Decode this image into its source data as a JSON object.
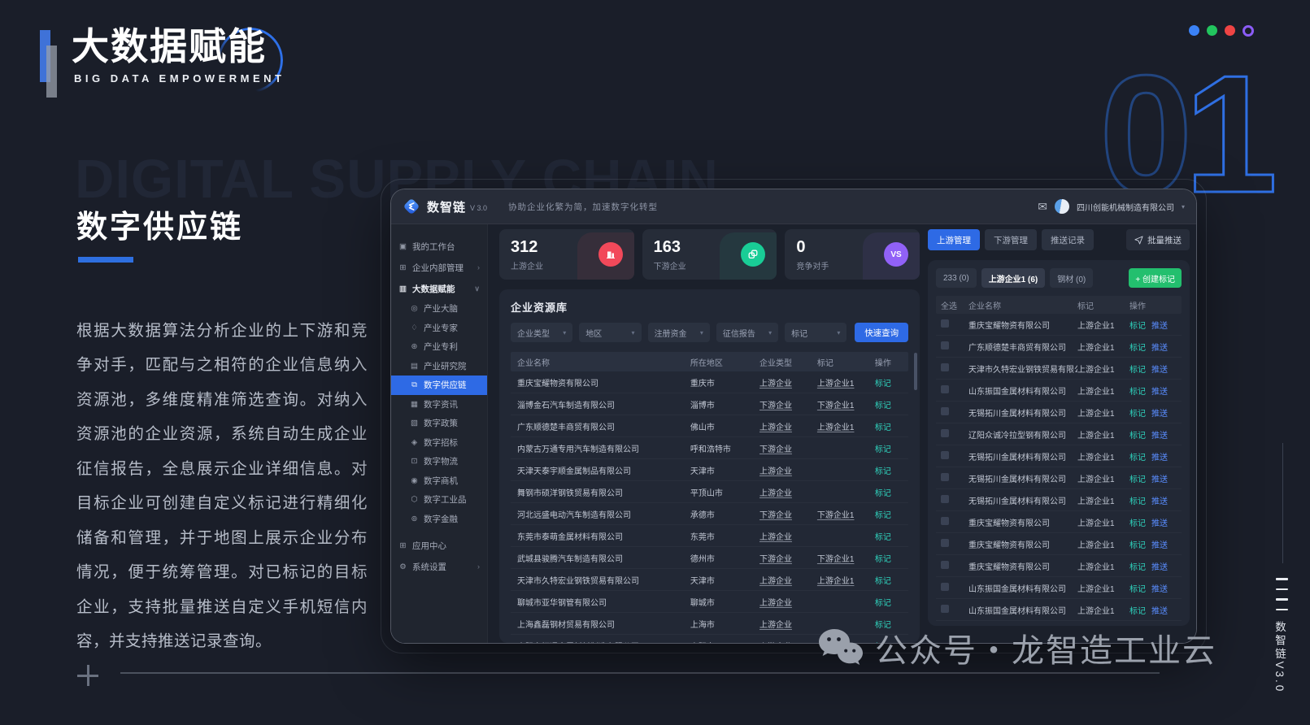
{
  "slide": {
    "title": "大数据赋能",
    "subtitle": "BIG DATA EMPOWERMENT",
    "watermark": "DIGITAL SUPPLY CHAIN",
    "section_title": "数字供应链",
    "paragraph": "根据大数据算法分析企业的上下游和竞争对手，匹配与之相符的企业信息纳入资源池，多维度精准筛选查询。对纳入资源池的企业资源，系统自动生成企业征信报告，全息展示企业详细信息。对目标企业可创建自定义标记进行精细化储备和管理，并于地图上展示企业分布情况，便于统筹管理。对已标记的目标企业，支持批量推送自定义手机短信内容，并支持推送记录查询。",
    "page_number": "01",
    "footer_brand": "公众号・龙智造工业云",
    "side_caption": "数智链V3.0"
  },
  "decor": {
    "window_dots": [
      "#3b82f6",
      "#22c55e",
      "#ef4444",
      "#8b5cf6"
    ],
    "accent_blue": "#2e6ae5",
    "teal_link": "#2fd3bd",
    "push_link": "#5a8dff",
    "create_green": "#23bf6e",
    "page_number_strokes": [
      "#22457f",
      "#2f6fe2"
    ]
  },
  "app": {
    "brand": "数智链",
    "version": "V 3.0",
    "tagline": "协助企业化繁为简，加速数字化转型",
    "account": "四川创能机械制造有限公司",
    "stats": [
      {
        "value": "312",
        "label": "上游企业",
        "icon": "building-icon",
        "color": "#f2495a"
      },
      {
        "value": "163",
        "label": "下游企业",
        "icon": "link-icon",
        "color": "#19cd96"
      },
      {
        "value": "0",
        "label": "竞争对手",
        "icon": "vs-icon",
        "icon_text": "VS",
        "color": "#9161f7"
      }
    ],
    "sidebar": {
      "items": [
        {
          "label": "我的工作台",
          "icon": "workbench-icon",
          "level": "top"
        },
        {
          "label": "企业内部管理",
          "icon": "org-icon",
          "level": "top",
          "chevron": "right"
        },
        {
          "label": "大数据赋能",
          "icon": "bigdata-icon",
          "level": "top",
          "chevron": "down",
          "emph": true
        },
        {
          "label": "产业大脑",
          "icon": "brain-icon",
          "level": "sub"
        },
        {
          "label": "产业专家",
          "icon": "expert-icon",
          "level": "sub"
        },
        {
          "label": "产业专利",
          "icon": "patent-icon",
          "level": "sub"
        },
        {
          "label": "产业研究院",
          "icon": "institute-icon",
          "level": "sub"
        },
        {
          "label": "数字供应链",
          "icon": "supply-chain-icon",
          "level": "sub",
          "active": true
        },
        {
          "label": "数字资讯",
          "icon": "news-icon",
          "level": "sub"
        },
        {
          "label": "数字政策",
          "icon": "policy-icon",
          "level": "sub"
        },
        {
          "label": "数字招标",
          "icon": "bidding-icon",
          "level": "sub"
        },
        {
          "label": "数字物流",
          "icon": "logistics-icon",
          "level": "sub"
        },
        {
          "label": "数字商机",
          "icon": "business-icon",
          "level": "sub"
        },
        {
          "label": "数字工业品",
          "icon": "industrial-icon",
          "level": "sub"
        },
        {
          "label": "数字金融",
          "icon": "finance-icon",
          "level": "sub"
        },
        {
          "label": "应用中心",
          "icon": "apps-icon",
          "level": "top",
          "gap": true
        },
        {
          "label": "系统设置",
          "icon": "settings-icon",
          "level": "top",
          "chevron": "right"
        }
      ]
    },
    "resource": {
      "title": "企业资源库",
      "filters": [
        "企业类型",
        "地区",
        "注册资金",
        "征信报告",
        "标记"
      ],
      "search_button": "快速查询",
      "columns": [
        "企业名称",
        "所在地区",
        "企业类型",
        "标记",
        "操作"
      ],
      "action_label": "标记",
      "rows": [
        {
          "name": "重庆宝耀物资有限公司",
          "region": "重庆市",
          "type": "上游企业",
          "tag": "上游企业1"
        },
        {
          "name": "淄博金石汽车制造有限公司",
          "region": "淄博市",
          "type": "下游企业",
          "tag": "下游企业1"
        },
        {
          "name": "广东顺德楚丰商贸有限公司",
          "region": "佛山市",
          "type": "上游企业",
          "tag": "上游企业1"
        },
        {
          "name": "内蒙古万通专用汽车制造有限公司",
          "region": "呼和浩特市",
          "type": "下游企业",
          "tag": ""
        },
        {
          "name": "天津天泰宇顺金属制品有限公司",
          "region": "天津市",
          "type": "上游企业",
          "tag": ""
        },
        {
          "name": "舞钢市硕洋钢铁贸易有限公司",
          "region": "平顶山市",
          "type": "上游企业",
          "tag": ""
        },
        {
          "name": "河北远盛电动汽车制造有限公司",
          "region": "承德市",
          "type": "下游企业",
          "tag": "下游企业1"
        },
        {
          "name": "东莞市泰萌金属材料有限公司",
          "region": "东莞市",
          "type": "上游企业",
          "tag": ""
        },
        {
          "name": "武城县骏腾汽车制造有限公司",
          "region": "德州市",
          "type": "下游企业",
          "tag": "下游企业1"
        },
        {
          "name": "天津市久特宏业钢铁贸易有限公司",
          "region": "天津市",
          "type": "上游企业",
          "tag": "上游企业1"
        },
        {
          "name": "聊城市亚华钢管有限公司",
          "region": "聊城市",
          "type": "上游企业",
          "tag": ""
        },
        {
          "name": "上海鑫磊钢材贸易有限公司",
          "region": "上海市",
          "type": "上游企业",
          "tag": ""
        },
        {
          "name": "贵阳市恒通金属材料制造有限公司",
          "region": "贵阳市",
          "type": "上游企业",
          "tag": ""
        }
      ]
    },
    "marks": {
      "tabs": [
        {
          "label": "上游管理",
          "active": true
        },
        {
          "label": "下游管理"
        },
        {
          "label": "推送记录"
        }
      ],
      "batch_button": "批量推送",
      "chips": [
        {
          "label": "233 (0)"
        },
        {
          "label": "上游企业1 (6)",
          "active": true
        },
        {
          "label": "钢材 (0)"
        }
      ],
      "create_button": "+ 创建标记",
      "columns": [
        "全选",
        "企业名称",
        "标记",
        "操作"
      ],
      "actions": [
        "标记",
        "推送"
      ],
      "rows": [
        {
          "name": "重庆宝耀物资有限公司",
          "tag": "上游企业1"
        },
        {
          "name": "广东顺德楚丰商贸有限公司",
          "tag": "上游企业1"
        },
        {
          "name": "天津市久特宏业钢铁贸易有限公司",
          "tag": "上游企业1"
        },
        {
          "name": "山东振国金属材料有限公司",
          "tag": "上游企业1"
        },
        {
          "name": "无锡拓川金属材料有限公司",
          "tag": "上游企业1"
        },
        {
          "name": "辽阳众诚冷拉型钢有限公司",
          "tag": "上游企业1"
        },
        {
          "name": "无锡拓川金属材料有限公司",
          "tag": "上游企业1"
        },
        {
          "name": "无锡拓川金属材料有限公司",
          "tag": "上游企业1"
        },
        {
          "name": "无锡拓川金属材料有限公司",
          "tag": "上游企业1"
        },
        {
          "name": "重庆宝耀物资有限公司",
          "tag": "上游企业1"
        },
        {
          "name": "重庆宝耀物资有限公司",
          "tag": "上游企业1"
        },
        {
          "name": "重庆宝耀物资有限公司",
          "tag": "上游企业1"
        },
        {
          "name": "山东振国金属材料有限公司",
          "tag": "上游企业1"
        },
        {
          "name": "山东振国金属材料有限公司",
          "tag": "上游企业1"
        }
      ]
    }
  }
}
